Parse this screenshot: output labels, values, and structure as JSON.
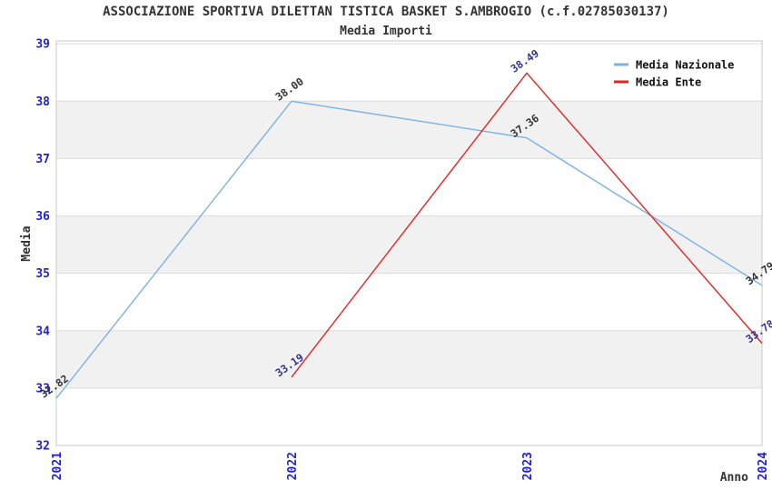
{
  "chart_data": {
    "type": "line",
    "title": "ASSOCIAZIONE SPORTIVA DILETTAN TISTICA BASKET S.AMBROGIO (c.f.02785030137)",
    "subtitle": "Media Importi",
    "xlabel": "Anno",
    "ylabel": "Media",
    "x_ticks": [
      2021,
      2022,
      2023,
      2024
    ],
    "y_ticks": [
      32,
      33,
      34,
      35,
      36,
      37,
      38,
      39
    ],
    "xlim": [
      2021,
      2024
    ],
    "ylim": [
      32,
      39.05
    ],
    "grid": "horizontal",
    "gray_bands": [
      [
        33,
        34
      ],
      [
        35,
        36
      ],
      [
        37,
        38
      ]
    ],
    "legend_position": "top-right-inside",
    "series": [
      {
        "name": "Media Nazionale",
        "color": "#7EB1E3",
        "label_color": "#333333",
        "points": [
          {
            "x": 2021,
            "y": 32.82,
            "label": "32.82"
          },
          {
            "x": 2022,
            "y": 38.0,
            "label": "38.00"
          },
          {
            "x": 2023,
            "y": 37.36,
            "label": "37.36"
          },
          {
            "x": 2024,
            "y": 34.79,
            "label": "34.79"
          }
        ]
      },
      {
        "name": "Media Ente",
        "color": "#E02525",
        "label_color": "#333399",
        "points": [
          {
            "x": 2022,
            "y": 33.19,
            "label": "33.19"
          },
          {
            "x": 2023,
            "y": 38.49,
            "label": "38.49"
          },
          {
            "x": 2024,
            "y": 33.78,
            "label": "33.78"
          }
        ]
      }
    ],
    "colors": {
      "background": "#FFFFFF",
      "band": "#F1F1F1",
      "grid": "#DDDDDD",
      "border": "#D0D0D0",
      "tick_label": "#2222CC",
      "axis_title": "#333333",
      "title_text": "#333333",
      "legend_text": "#111111"
    }
  }
}
